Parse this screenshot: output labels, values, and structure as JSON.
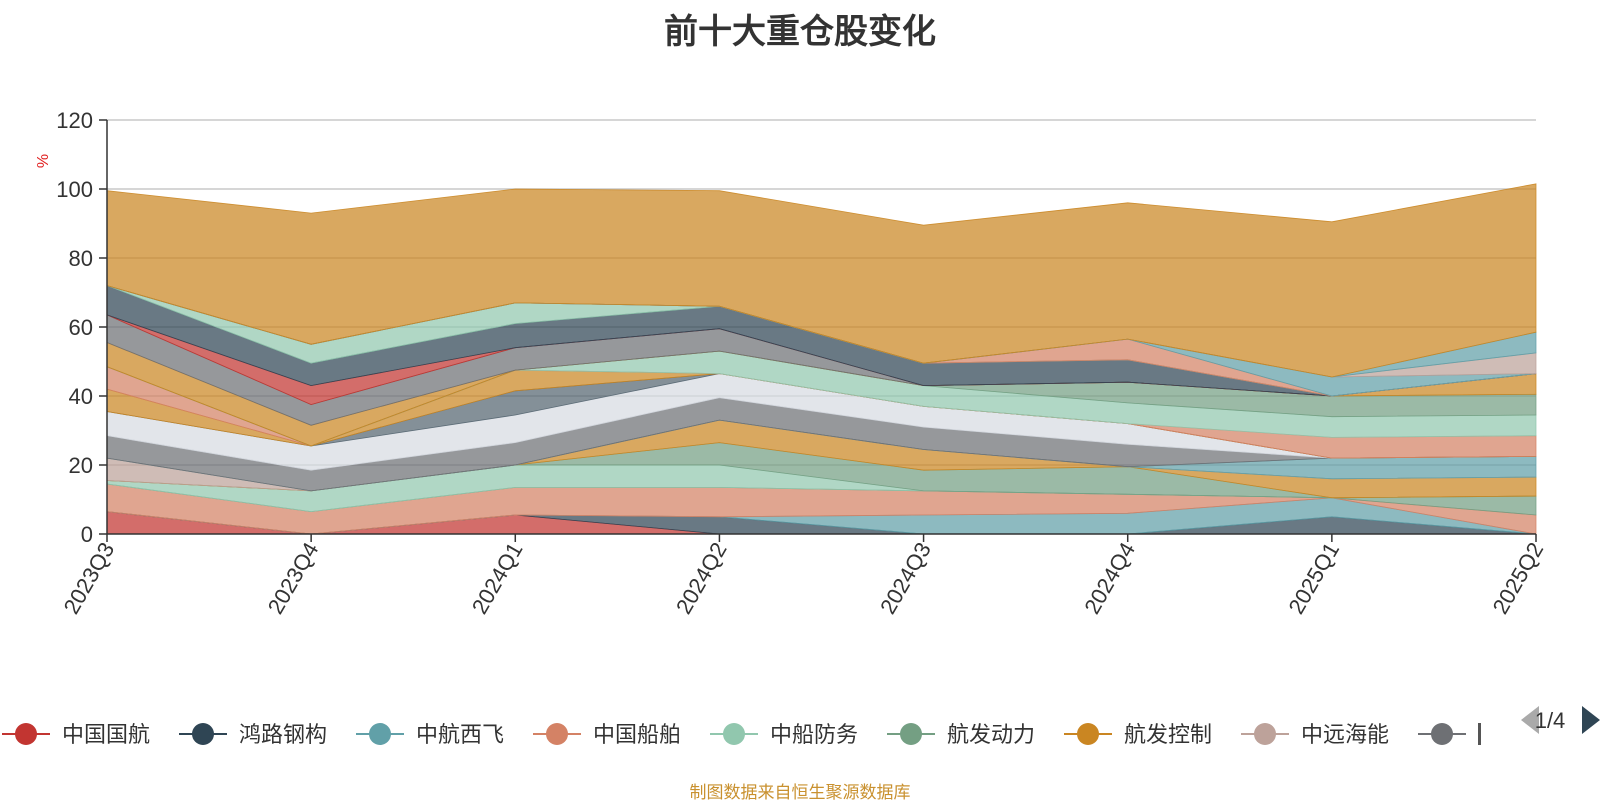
{
  "colors": {
    "中国国航": "#c23531",
    "鸿路钢构": "#2f4554",
    "中航西飞": "#61a0a8",
    "中国船舶": "#d48265",
    "中船防务": "#91c7ae",
    "航发动力": "#749f83",
    "航发控制": "#ca8622",
    "中远海能": "#bda29a",
    "其他": "#6e7074"
  },
  "pager": {
    "text": "1/4"
  },
  "source": "制图数据来自恒生聚源数据库",
  "chart_data": {
    "type": "area",
    "stacked": true,
    "title": "前十大重仓股变化",
    "ylabel": "%",
    "ylim": [
      0,
      120
    ],
    "yticks": [
      0,
      20,
      40,
      60,
      80,
      100,
      120
    ],
    "categories": [
      "2023Q3",
      "2023Q4",
      "2024Q1",
      "2024Q2",
      "2024Q3",
      "2024Q4",
      "2025Q1",
      "2025Q2"
    ],
    "grid": true,
    "legend_position": "bottom",
    "legend": [
      "中国国航",
      "鸿路钢构",
      "中航西飞",
      "中国船舶",
      "中船防务",
      "航发动力",
      "航发控制",
      "中远海能",
      "其他"
    ],
    "series": [
      {
        "name": "中国国航",
        "color": "#c23531",
        "values": [
          6.5,
          0,
          5.5,
          0,
          0,
          0,
          0,
          0
        ]
      },
      {
        "name": "",
        "color": "#2f4554",
        "values": [
          0,
          0,
          0,
          5,
          0,
          0,
          5,
          0
        ]
      },
      {
        "name": "",
        "color": "#61a0a8",
        "values": [
          0,
          0,
          0,
          0,
          5.5,
          6,
          5.5,
          0
        ]
      },
      {
        "name": "",
        "color": "#d48265",
        "values": [
          8,
          6.5,
          8,
          8.5,
          7,
          5.5,
          0,
          5.5
        ]
      },
      {
        "name": "",
        "color": "#749f83",
        "values": [
          0,
          0,
          0,
          0,
          0,
          0,
          0,
          5.5
        ]
      },
      {
        "name": "",
        "color": "#91c7ae",
        "values": [
          1,
          6,
          6.5,
          6.5,
          0,
          0,
          0,
          0
        ]
      },
      {
        "name": "",
        "color": "#749f83",
        "values": [
          0,
          0,
          0,
          6.5,
          6,
          8,
          0,
          0
        ]
      },
      {
        "name": "",
        "color": "#ca8622",
        "values": [
          0,
          0,
          0,
          6.5,
          6,
          0,
          5.5,
          5.5
        ]
      },
      {
        "name": "",
        "color": "#bda29a",
        "values": [
          6.5,
          0,
          0,
          0,
          0,
          0,
          0,
          0
        ]
      },
      {
        "name": "",
        "color": "#61a0a8",
        "values": [
          0,
          0,
          0,
          0,
          0,
          0,
          6,
          6
        ]
      },
      {
        "name": "",
        "color": "#6e7074",
        "values": [
          6.5,
          6,
          6.5,
          6.5,
          6.5,
          6.5,
          0,
          0
        ]
      },
      {
        "name": "",
        "color": "#d7dbe2",
        "values": [
          7,
          7,
          8,
          7,
          6,
          6,
          0,
          0
        ]
      },
      {
        "name": "",
        "color": "#546570",
        "values": [
          0,
          0,
          7,
          0,
          0,
          0,
          0,
          0
        ]
      },
      {
        "name": "",
        "color": "#ca8622",
        "values": [
          6.5,
          0,
          6,
          0,
          0,
          0,
          0,
          0
        ]
      },
      {
        "name": "",
        "color": "#d48265",
        "values": [
          6.5,
          0,
          0,
          0,
          0,
          0,
          6,
          6
        ]
      },
      {
        "name": "",
        "color": "#91c7ae",
        "values": [
          0,
          0,
          0,
          6.5,
          6,
          6,
          6,
          6
        ]
      },
      {
        "name": "",
        "color": "#749f83",
        "values": [
          0,
          0,
          0,
          0,
          0,
          6,
          6,
          6
        ]
      },
      {
        "name": "",
        "color": "#ca8622",
        "values": [
          7,
          6,
          0,
          0,
          0,
          0,
          0,
          6
        ]
      },
      {
        "name": "",
        "color": "#6e7074",
        "values": [
          8,
          6,
          6.5,
          6.5,
          0,
          0,
          0,
          0
        ]
      },
      {
        "name": "",
        "color": "#c23531",
        "values": [
          0,
          5.5,
          0,
          0,
          0,
          0,
          0,
          0
        ]
      },
      {
        "name": "",
        "color": "#2f4554",
        "values": [
          8.5,
          6.5,
          7,
          6.5,
          6.5,
          6.5,
          0,
          0
        ]
      },
      {
        "name": "",
        "color": "#91c7ae",
        "values": [
          0,
          5.5,
          6,
          0,
          0,
          0,
          0,
          0
        ]
      },
      {
        "name": "",
        "color": "#d48265",
        "values": [
          0,
          0,
          0,
          0,
          0,
          6,
          0,
          0
        ]
      },
      {
        "name": "",
        "color": "#61a0a8",
        "values": [
          0,
          0,
          0,
          0,
          0,
          0,
          5.5,
          0
        ]
      },
      {
        "name": "",
        "color": "#bda29a",
        "values": [
          0,
          0,
          0,
          0,
          0,
          0,
          0,
          6
        ]
      },
      {
        "name": "",
        "color": "#61a0a8",
        "values": [
          0,
          0,
          0,
          0,
          0,
          0,
          0,
          6
        ]
      },
      {
        "name": "",
        "color": "#ca8622",
        "values": [
          27.5,
          38,
          33,
          33.5,
          40,
          39.5,
          45,
          43
        ]
      }
    ]
  }
}
